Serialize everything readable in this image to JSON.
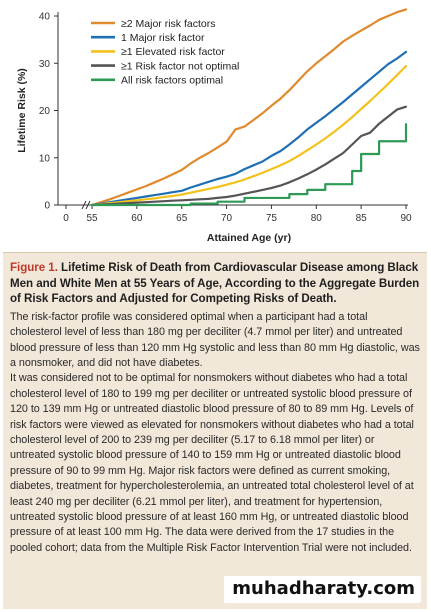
{
  "chart_data": {
    "type": "line",
    "xlabel": "Attained Age (yr)",
    "ylabel": "Lifetime Risk (%)",
    "xlim": [
      55,
      90
    ],
    "ylim": [
      0,
      40
    ],
    "x_ticks": [
      "0",
      "55",
      "60",
      "65",
      "70",
      "75",
      "80",
      "85",
      "90"
    ],
    "y_ticks": [
      "0",
      "10",
      "20",
      "30",
      "40"
    ],
    "axis_break": true,
    "grid": false,
    "legend_position": "top-left",
    "x": [
      55,
      56,
      57,
      58,
      59,
      60,
      61,
      62,
      63,
      64,
      65,
      66,
      67,
      68,
      69,
      70,
      71,
      72,
      73,
      74,
      75,
      76,
      77,
      78,
      79,
      80,
      81,
      82,
      83,
      84,
      85,
      86,
      87,
      88,
      89,
      90
    ],
    "series": [
      {
        "name": "≥2 Major risk factors",
        "color": "#e08a2e",
        "step": false,
        "values": [
          0,
          0.6,
          1.2,
          1.9,
          2.6,
          3.3,
          4.0,
          4.8,
          5.6,
          6.5,
          7.4,
          8.8,
          10.0,
          11.0,
          12.2,
          13.4,
          16.0,
          16.6,
          18.0,
          19.4,
          21.0,
          22.5,
          24.3,
          26.3,
          28.3,
          30.0,
          31.5,
          33.0,
          34.6,
          35.8,
          36.9,
          38.0,
          39.2,
          40.0,
          40.8,
          41.4
        ]
      },
      {
        "name": "1 Major risk factor",
        "color": "#1f6fb5",
        "step": false,
        "values": [
          0,
          0.3,
          0.6,
          0.9,
          1.2,
          1.5,
          1.8,
          2.1,
          2.4,
          2.7,
          3.0,
          3.7,
          4.3,
          4.9,
          5.5,
          6.0,
          6.6,
          7.6,
          8.4,
          9.2,
          10.4,
          11.4,
          12.8,
          14.3,
          16.0,
          17.4,
          18.8,
          20.3,
          21.8,
          23.4,
          25.0,
          26.6,
          28.2,
          29.8,
          31.0,
          32.4
        ]
      },
      {
        "name": "≥1 Elevated risk factor",
        "color": "#f2c21b",
        "step": false,
        "values": [
          0,
          0.2,
          0.4,
          0.6,
          0.8,
          1.0,
          1.2,
          1.4,
          1.7,
          1.9,
          2.2,
          2.6,
          3.0,
          3.4,
          3.8,
          4.3,
          4.8,
          5.4,
          6.1,
          6.8,
          7.6,
          8.4,
          9.3,
          10.4,
          11.6,
          12.8,
          14.1,
          15.5,
          17.0,
          18.6,
          20.3,
          22.0,
          23.8,
          25.6,
          27.5,
          29.4
        ]
      },
      {
        "name": "≥1 Risk factor not optimal",
        "color": "#555555",
        "step": false,
        "values": [
          0,
          0.1,
          0.2,
          0.3,
          0.4,
          0.5,
          0.6,
          0.7,
          0.8,
          0.9,
          1.0,
          1.1,
          1.2,
          1.3,
          1.5,
          1.7,
          2.0,
          2.4,
          2.8,
          3.2,
          3.6,
          4.1,
          4.8,
          5.6,
          6.5,
          7.5,
          8.6,
          9.8,
          11.0,
          12.8,
          14.6,
          15.3,
          17.2,
          18.7,
          20.2,
          20.8
        ]
      },
      {
        "name": "All risk factors optimal",
        "color": "#2e9a55",
        "step": true,
        "values": [
          0,
          0,
          0,
          0,
          0,
          0,
          0,
          0,
          0,
          0,
          0,
          0.3,
          0.3,
          0.3,
          0.7,
          0.7,
          0.7,
          1.5,
          1.5,
          1.5,
          1.5,
          1.5,
          2.3,
          2.3,
          3.2,
          3.2,
          4.4,
          4.4,
          4.4,
          7.2,
          10.8,
          10.8,
          13.5,
          13.5,
          13.5,
          17.1
        ]
      }
    ]
  },
  "caption": {
    "label": "Figure 1.",
    "title": "Lifetime Risk of Death from Cardiovascular Disease among Black Men and White Men at 55 Years of Age, According to the Aggregate Burden of Risk Factors and Adjusted for Competing Risks of Death.",
    "para1": "The risk-factor profile was considered optimal when a participant had a total cholesterol level of less than 180 mg per deciliter (4.7 mmol per liter) and untreated blood pressure of less than 120 mm Hg systolic and less than 80 mm Hg diastolic, was a nonsmoker, and did not have diabetes.",
    "para2": "It was considered not to be optimal for nonsmokers without diabetes who had a total cholesterol level of 180 to 199 mg per deciliter or untreated systolic blood pressure of 120 to 139 mm Hg or untreated diastolic blood pressure of 80 to 89 mm Hg. Levels of risk factors were viewed as elevated for nonsmokers without diabetes who had a total cholesterol level of 200 to 239 mg per deciliter (5.17 to 6.18 mmol per liter) or untreated systolic blood pressure of 140 to 159 mm Hg or untreated diastolic blood pressure of 90 to 99 mm Hg. Major risk factors were defined as current smoking, diabetes, treatment for hypercholesterolemia, an untreated total cholesterol level of at least 240 mg per deciliter (6.21 mmol per liter), and treatment for hypertension, untreated systolic blood pressure of at least 160 mm Hg, or untreated diastolic blood pressure of at least 100 mm Hg. The data were derived from the 17 studies in the pooled cohort; data from the Multiple Risk Factor Intervention Trial were not included."
  },
  "watermark": "muhadharaty.com"
}
